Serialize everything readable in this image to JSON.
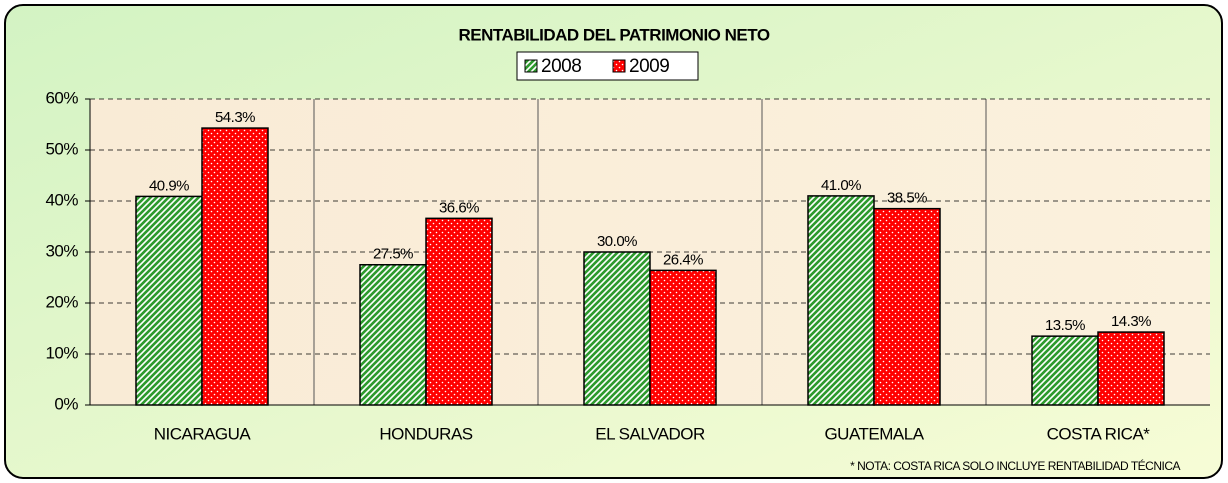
{
  "chart_data": {
    "type": "bar",
    "title": "RENTABILIDAD DEL PATRIMONIO NETO",
    "categories": [
      "NICARAGUA",
      "HONDURAS",
      "EL SALVADOR",
      "GUATEMALA",
      "COSTA RICA*"
    ],
    "series": [
      {
        "name": "2008",
        "color": "#2e9a2e",
        "values": [
          40.9,
          27.5,
          30.0,
          41.0,
          13.5
        ],
        "value_labels": [
          "40.9%",
          "27.5%",
          "30.0%",
          "41.0%",
          "13.5%"
        ]
      },
      {
        "name": "2009",
        "color": "#ff0000",
        "values": [
          54.3,
          36.6,
          26.4,
          38.5,
          14.3
        ],
        "value_labels": [
          "54.3%",
          "36.6%",
          "26.4%",
          "38.5%",
          "14.3%"
        ]
      }
    ],
    "ylim": [
      0,
      60
    ],
    "yticks": [
      {
        "value": 0,
        "label": "0%"
      },
      {
        "value": 10,
        "label": "10%"
      },
      {
        "value": 20,
        "label": "20%"
      },
      {
        "value": 30,
        "label": "30%"
      },
      {
        "value": 40,
        "label": "40%"
      },
      {
        "value": 50,
        "label": "50%"
      },
      {
        "value": 60,
        "label": "60%"
      }
    ],
    "grid": true,
    "annotation": "* NOTA: COSTA RICA SOLO INCLUYE RENTABILIDAD TÉCNICA"
  }
}
